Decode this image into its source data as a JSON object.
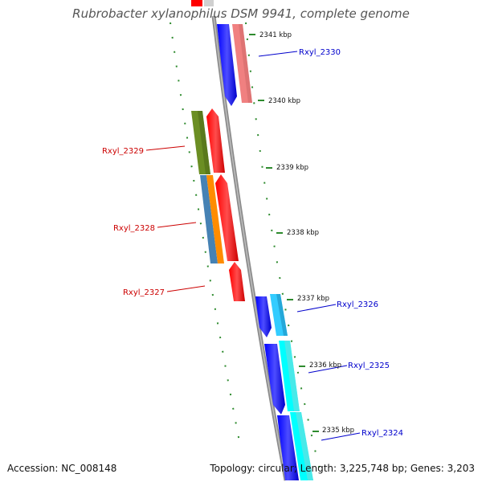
{
  "title": "Rubrobacter xylanophilus DSM 9941, complete genome",
  "accession": "Accession: NC_008148",
  "topology": "Topology: circular; Length: 3,225,748 bp; Genes: 3,203",
  "ticks": [
    {
      "label": "2341 kbp"
    },
    {
      "label": "2340 kbp"
    },
    {
      "label": "2339 kbp"
    },
    {
      "label": "2338 kbp"
    },
    {
      "label": "2337 kbp"
    },
    {
      "label": "2336 kbp"
    },
    {
      "label": "2335 kbp"
    }
  ],
  "genes": [
    {
      "label": "Rxyl_2330",
      "color": "#0000cc"
    },
    {
      "label": "Rxyl_2329",
      "color": "#cc0000"
    },
    {
      "label": "Rxyl_2328",
      "color": "#cc0000"
    },
    {
      "label": "Rxyl_2327",
      "color": "#cc0000"
    },
    {
      "label": "Rxyl_2326",
      "color": "#0000cc"
    },
    {
      "label": "Rxyl_2325",
      "color": "#0000cc"
    },
    {
      "label": "Rxyl_2324",
      "color": "#0000cc"
    }
  ],
  "colors": {
    "backbone": "#8c8c8c",
    "forward_cds": "#ff0000",
    "reverse_cds": "#0000ff",
    "skew_dots": "#2e8b2e",
    "cog_olive": "#6b8e23",
    "cog_steelblue": "#4682b4",
    "cog_orange": "#ff8c00",
    "cog_salmon": "#f08080",
    "cog_cyan": "#33ccff",
    "cog_aqua": "#00ffff"
  }
}
